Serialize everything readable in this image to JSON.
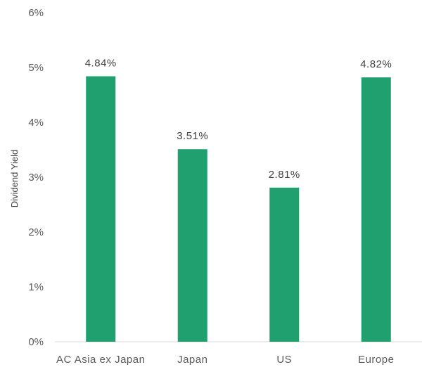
{
  "chart_data": {
    "type": "bar",
    "categories": [
      "AC Asia ex Japan",
      "Japan",
      "US",
      "Europe"
    ],
    "values": [
      4.84,
      3.51,
      2.81,
      4.82
    ],
    "data_labels": [
      "4.84%",
      "3.51%",
      "2.81%",
      "4.82%"
    ],
    "ylabel": "Dividend Yield",
    "ylim": [
      0,
      6
    ],
    "y_ticks": [
      0,
      1,
      2,
      3,
      4,
      5,
      6
    ],
    "y_tick_labels": [
      "0%",
      "1%",
      "2%",
      "3%",
      "4%",
      "5%",
      "6%"
    ],
    "bar_color": "#20a06f",
    "grid": false,
    "legend": "none"
  }
}
